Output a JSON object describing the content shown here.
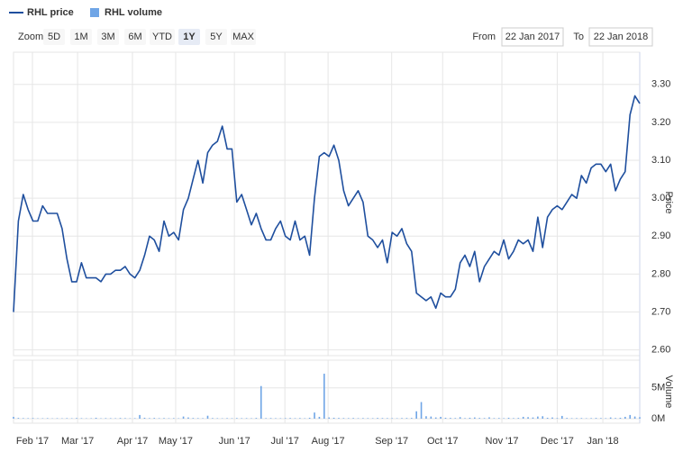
{
  "chart_data": {
    "type": "line",
    "series": [
      {
        "name": "RHL price",
        "type": "line",
        "color": "#1f4f9e",
        "values": [
          2.7,
          2.94,
          3.01,
          2.97,
          2.94,
          2.94,
          2.98,
          2.96,
          2.96,
          2.96,
          2.92,
          2.84,
          2.78,
          2.78,
          2.83,
          2.79,
          2.79,
          2.79,
          2.78,
          2.8,
          2.8,
          2.81,
          2.81,
          2.82,
          2.8,
          2.79,
          2.81,
          2.85,
          2.9,
          2.89,
          2.86,
          2.94,
          2.9,
          2.91,
          2.89,
          2.97,
          3.0,
          3.05,
          3.1,
          3.04,
          3.12,
          3.14,
          3.15,
          3.19,
          3.13,
          3.13,
          2.99,
          3.01,
          2.97,
          2.93,
          2.96,
          2.92,
          2.89,
          2.89,
          2.92,
          2.94,
          2.9,
          2.89,
          2.94,
          2.89,
          2.9,
          2.85,
          3.0,
          3.11,
          3.12,
          3.11,
          3.14,
          3.1,
          3.02,
          2.98,
          3.0,
          3.02,
          2.99,
          2.9,
          2.89,
          2.87,
          2.89,
          2.83,
          2.91,
          2.9,
          2.92,
          2.88,
          2.86,
          2.75,
          2.74,
          2.73,
          2.74,
          2.71,
          2.75,
          2.74,
          2.74,
          2.76,
          2.83,
          2.85,
          2.82,
          2.86,
          2.78,
          2.82,
          2.84,
          2.86,
          2.85,
          2.89,
          2.84,
          2.86,
          2.89,
          2.88,
          2.89,
          2.86,
          2.95,
          2.87,
          2.95,
          2.97,
          2.98,
          2.97,
          2.99,
          3.01,
          3.0,
          3.06,
          3.04,
          3.08,
          3.09,
          3.09,
          3.07,
          3.09,
          3.02,
          3.05,
          3.07,
          3.22,
          3.27,
          3.25
        ]
      },
      {
        "name": "RHL volume",
        "type": "column",
        "axis": "y2",
        "color": "#6fa5e6",
        "values": [
          300000,
          120000,
          90000,
          80000,
          100000,
          60000,
          70000,
          90000,
          50000,
          80000,
          60000,
          90000,
          70000,
          110000,
          80000,
          60000,
          70000,
          150000,
          60000,
          90000,
          80000,
          70000,
          110000,
          90000,
          60000,
          80000,
          600000,
          150000,
          90000,
          120000,
          80000,
          100000,
          70000,
          90000,
          60000,
          350000,
          200000,
          110000,
          90000,
          80000,
          480000,
          100000,
          80000,
          60000,
          90000,
          70000,
          100000,
          80000,
          90000,
          70000,
          120000,
          5300000,
          90000,
          100000,
          80000,
          70000,
          90000,
          110000,
          80000,
          100000,
          70000,
          150000,
          1000000,
          300000,
          7300000,
          200000,
          150000,
          120000,
          100000,
          90000,
          110000,
          80000,
          100000,
          90000,
          80000,
          120000,
          100000,
          90000,
          80000,
          70000,
          100000,
          110000,
          120000,
          1200000,
          2700000,
          400000,
          350000,
          200000,
          300000,
          150000,
          120000,
          100000,
          250000,
          90000,
          150000,
          200000,
          120000,
          100000,
          220000,
          90000,
          110000,
          80000,
          150000,
          90000,
          120000,
          300000,
          250000,
          200000,
          350000,
          400000,
          150000,
          200000,
          100000,
          450000,
          120000,
          80000,
          90000,
          100000,
          70000,
          90000,
          120000,
          100000,
          80000,
          200000,
          110000,
          150000,
          300000,
          600000,
          350000,
          250000
        ]
      }
    ],
    "xlim": [
      0,
      129
    ],
    "xticks": [
      {
        "value": 3.9,
        "label": "Feb '17"
      },
      {
        "value": 13.2,
        "label": "Mar '17"
      },
      {
        "value": 24.5,
        "label": "Apr '17"
      },
      {
        "value": 33.4,
        "label": "May '17"
      },
      {
        "value": 45.5,
        "label": "Jun '17"
      },
      {
        "value": 55.9,
        "label": "Jul '17"
      },
      {
        "value": 64.8,
        "label": "Aug '17"
      },
      {
        "value": 77.9,
        "label": "Sep '17"
      },
      {
        "value": 88.4,
        "label": "Oct '17"
      },
      {
        "value": 100.6,
        "label": "Nov '17"
      },
      {
        "value": 112.0,
        "label": "Dec '17"
      },
      {
        "value": 121.4,
        "label": "Jan '18"
      }
    ],
    "ylabel": "Price",
    "ylim": [
      2.585,
      3.385
    ],
    "yticks": [
      {
        "value": 2.6,
        "label": "2.60"
      },
      {
        "value": 2.7,
        "label": "2.70"
      },
      {
        "value": 2.8,
        "label": "2.80"
      },
      {
        "value": 2.9,
        "label": "2.90"
      },
      {
        "value": 3.0,
        "label": "3.00"
      },
      {
        "value": 3.1,
        "label": "3.10"
      },
      {
        "value": 3.2,
        "label": "3.20"
      },
      {
        "value": 3.3,
        "label": "3.30"
      }
    ],
    "y2label": "Volume",
    "y2lim": [
      0,
      9500000
    ],
    "y2ticks": [
      {
        "value": 0,
        "label": "0M"
      },
      {
        "value": 5000000,
        "label": "5M"
      }
    ],
    "grid": true
  },
  "range_selector": {
    "label": "Zoom",
    "buttons": [
      "5D",
      "1M",
      "3M",
      "6M",
      "YTD",
      "1Y",
      "5Y",
      "MAX"
    ],
    "selected": 5,
    "from_label": "From",
    "from": "22 Jan 2017",
    "to_label": "To",
    "to": "22 Jan 2018"
  }
}
